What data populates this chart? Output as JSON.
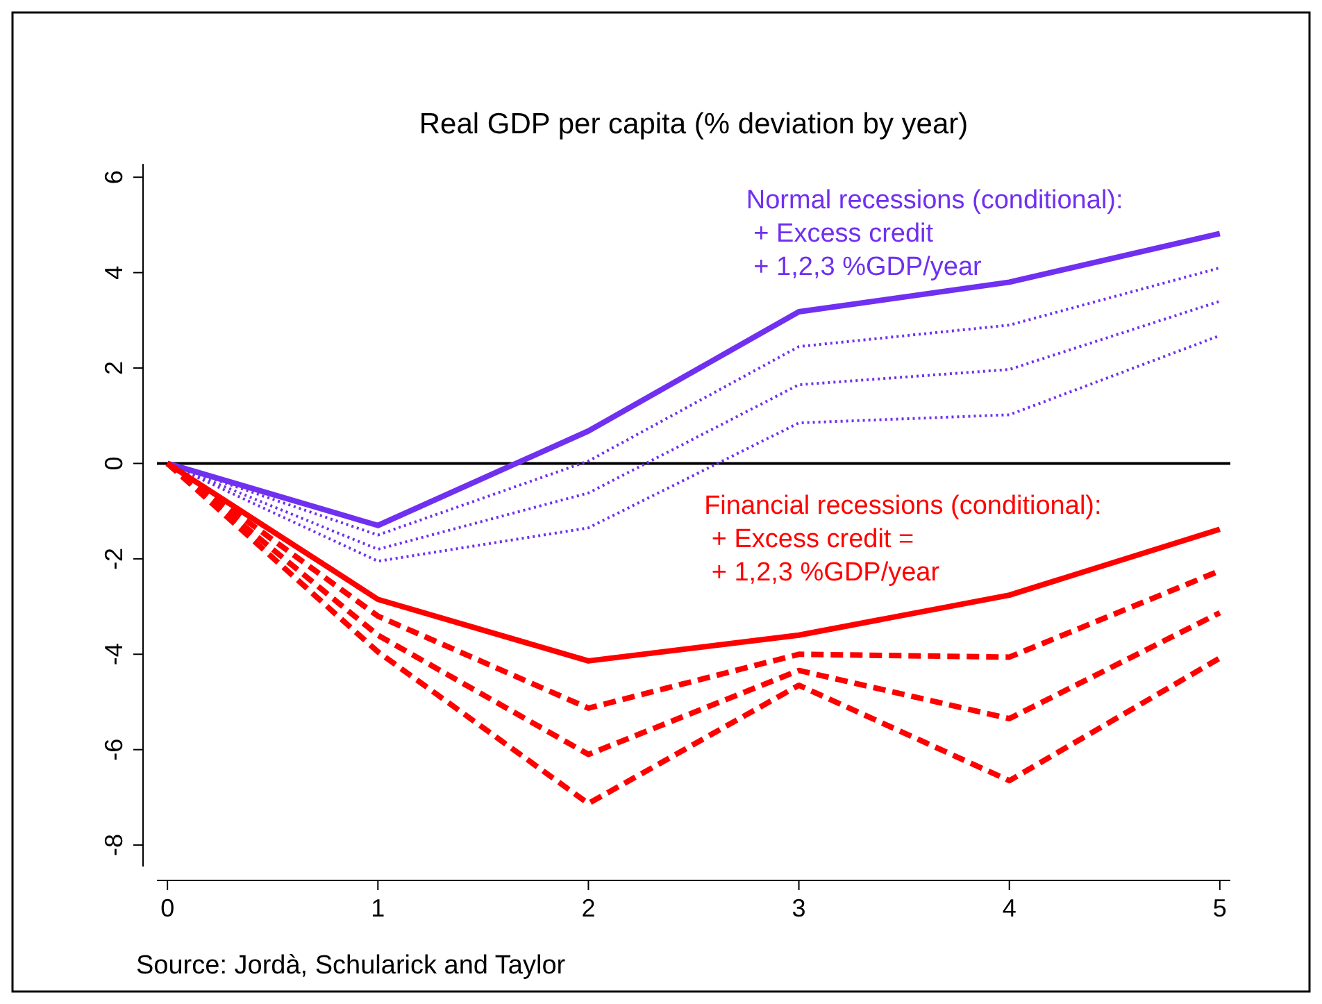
{
  "chart_data": {
    "type": "line",
    "title": "Real GDP per capita (% deviation by year)",
    "x": [
      0,
      1,
      2,
      3,
      4,
      5
    ],
    "xlim": [
      -0.05,
      5.05
    ],
    "xticks": [
      0,
      1,
      2,
      3,
      4,
      5
    ],
    "ylim": [
      -8.45,
      6.28
    ],
    "yticks": [
      -8,
      -6,
      -4,
      -2,
      0,
      2,
      4,
      6
    ],
    "grid": false,
    "marker": "none",
    "series": [
      {
        "name": "Normal recessions (conditional):\n + Excess credit\n + 1,2,3 %GDP/year",
        "color": "#7030f0",
        "line_style": "solid",
        "values": [
          0,
          -1.3,
          0.68,
          3.18,
          3.8,
          4.82
        ]
      },
      {
        "color": "#7030f0",
        "line_style": "dotted",
        "values": [
          0,
          -1.5,
          0.05,
          2.45,
          2.9,
          4.1
        ]
      },
      {
        "color": "#7030f0",
        "line_style": "dotted",
        "values": [
          0,
          -1.8,
          -0.62,
          1.65,
          1.97,
          3.4
        ]
      },
      {
        "color": "#7030f0",
        "line_style": "dotted",
        "values": [
          0,
          -2.05,
          -1.35,
          0.85,
          1.02,
          2.68
        ]
      },
      {
        "name": "Financial recessions (conditional):\n + Excess credit =\n + 1,2,3 %GDP/year",
        "color": "#ff0000",
        "line_style": "solid",
        "values": [
          0,
          -2.85,
          -4.14,
          -3.6,
          -2.76,
          -1.38
        ]
      },
      {
        "color": "#ff0000",
        "line_style": "dashed",
        "values": [
          0,
          -3.2,
          -5.13,
          -4.0,
          -4.06,
          -2.25
        ]
      },
      {
        "color": "#ff0000",
        "line_style": "dashed",
        "values": [
          0,
          -3.6,
          -6.1,
          -4.34,
          -5.35,
          -3.13
        ]
      },
      {
        "color": "#ff0000",
        "line_style": "dashed",
        "values": [
          0,
          -3.95,
          -7.13,
          -4.65,
          -6.65,
          -4.08
        ]
      }
    ],
    "ref_lines": [
      {
        "axis": "y",
        "value": 0,
        "color": "#000000",
        "line_style": "solid"
      }
    ],
    "annotations": [
      "Source: Jordà, Schularick and Taylor"
    ]
  }
}
